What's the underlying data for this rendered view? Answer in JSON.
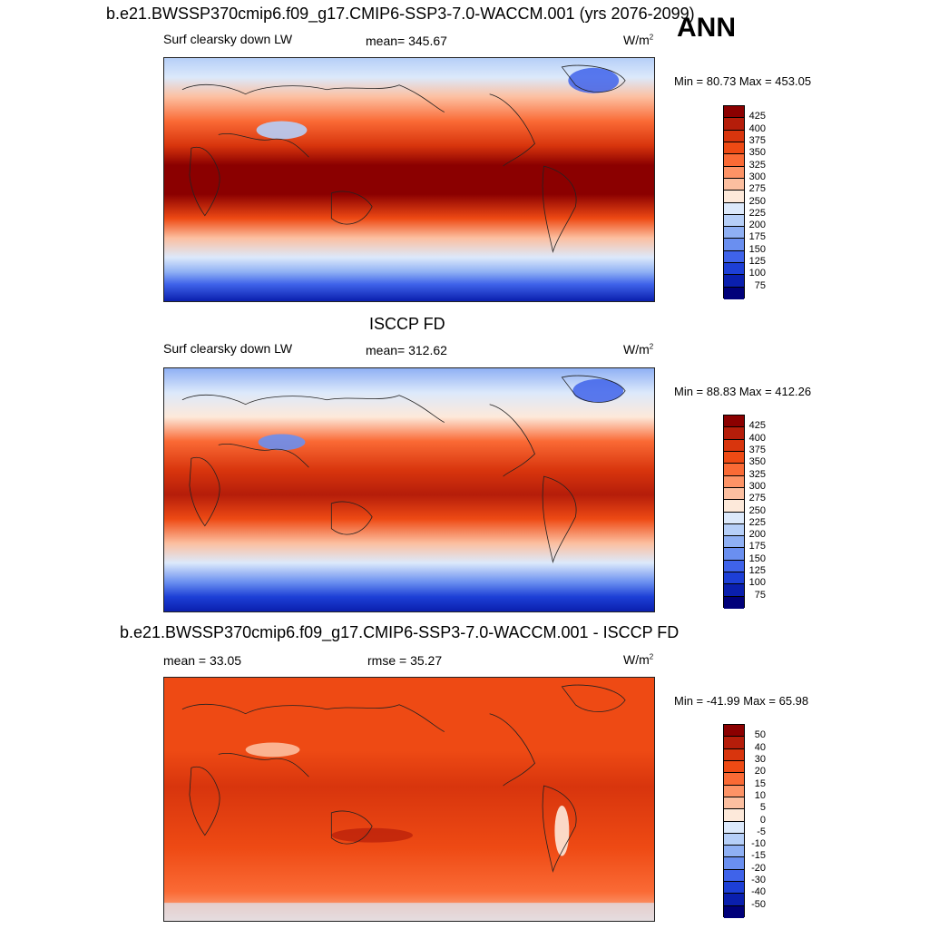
{
  "header": {
    "main_title": "b.e21.BWSSP370cmip6.f09_g17.CMIP6-SSP3-7.0-WACCM.001 (yrs 2076-2099)",
    "season": "ANN"
  },
  "panel1": {
    "variable": "Surf clearsky down LW",
    "stat": "mean= 345.67",
    "units": "W/m",
    "units_sup": "2",
    "minmax": "Min =  80.73 Max = 453.05"
  },
  "panel2": {
    "title": "ISCCP FD",
    "variable": "Surf clearsky down LW",
    "stat": "mean= 312.62",
    "units": "W/m",
    "units_sup": "2",
    "minmax": "Min =  88.83 Max = 412.26"
  },
  "panel3": {
    "title": "b.e21.BWSSP370cmip6.f09_g17.CMIP6-SSP3-7.0-WACCM.001 - ISCCP FD",
    "mean": "mean =  33.05",
    "rmse": "rmse =  35.27",
    "units": "W/m",
    "units_sup": "2",
    "minmax": "Min = -41.99 Max =  65.98"
  },
  "colorbar_abs": {
    "labels": [
      "425",
      "400",
      "375",
      "350",
      "325",
      "300",
      "275",
      "250",
      "225",
      "200",
      "175",
      "150",
      "125",
      "100",
      "75"
    ],
    "colors": [
      "#8b0000",
      "#b51d0a",
      "#d8350d",
      "#ee4a14",
      "#fa6a35",
      "#fd9366",
      "#fcbfa0",
      "#fde9da",
      "#dce9fb",
      "#b6cff8",
      "#8fb0f4",
      "#6a8ff0",
      "#3f63ea",
      "#1d3fd6",
      "#0a1fae",
      "#00007a"
    ]
  },
  "colorbar_diff": {
    "labels": [
      "50",
      "40",
      "30",
      "20",
      "15",
      "10",
      "5",
      "0",
      "-5",
      "-10",
      "-15",
      "-20",
      "-30",
      "-40",
      "-50"
    ],
    "colors": [
      "#8b0000",
      "#b51d0a",
      "#d8350d",
      "#ee4a14",
      "#fa6a35",
      "#fd9366",
      "#fcbfa0",
      "#fde9da",
      "#dce9fb",
      "#b6cff8",
      "#8fb0f4",
      "#6a8ff0",
      "#3f63ea",
      "#1d3fd6",
      "#0a1fae",
      "#00007a"
    ]
  }
}
